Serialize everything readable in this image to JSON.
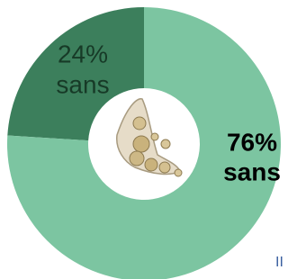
{
  "chart_data": {
    "type": "donut",
    "categories": [
      "sans",
      "sans"
    ],
    "values": [
      24,
      76
    ],
    "value_labels": [
      "24%",
      "76%"
    ],
    "colors": [
      "#3c7f5c",
      "#7cc5a1"
    ],
    "label_colors": [
      "#173a27",
      "#000000"
    ],
    "annotation": "II"
  }
}
